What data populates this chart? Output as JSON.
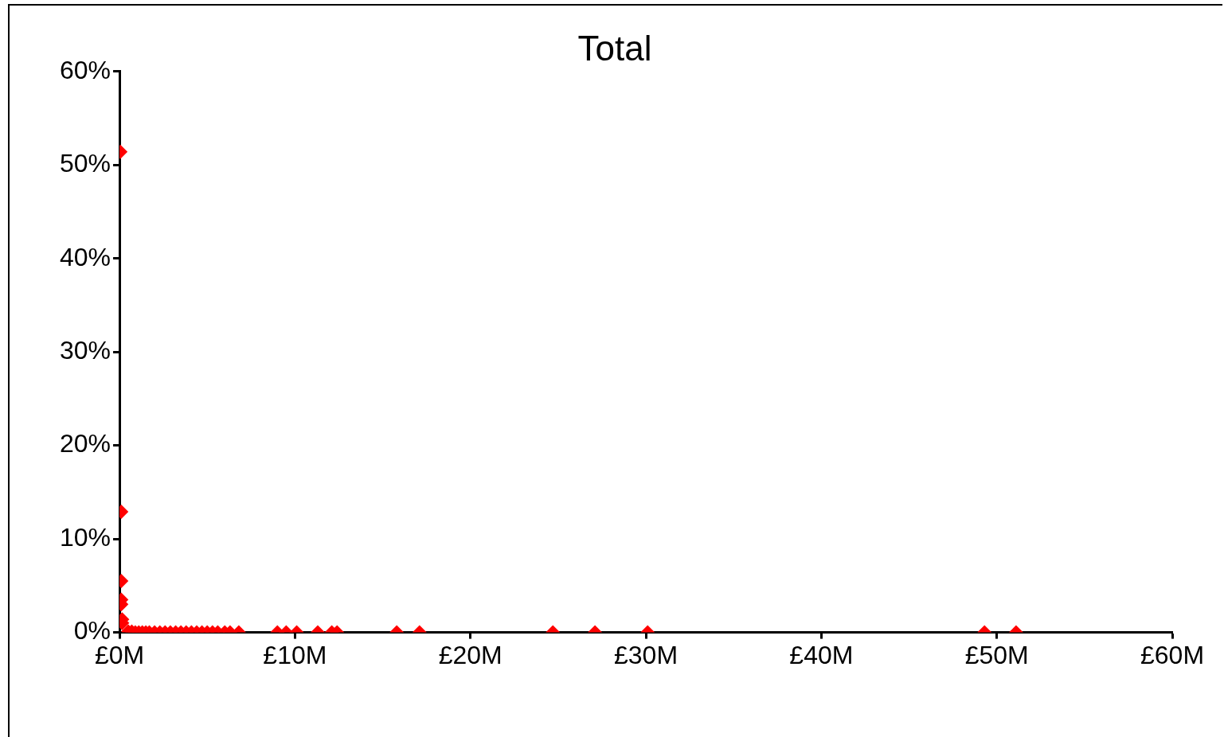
{
  "chart_data": {
    "type": "scatter",
    "title": "Total",
    "marker": "diamond",
    "grid": false,
    "legend": false,
    "series": [
      {
        "color": "#ff0000",
        "x": [
          0.05,
          0.1,
          0.1,
          0.1,
          0.1,
          0.15,
          0.15,
          0.5,
          0.7,
          0.9,
          1.1,
          1.3,
          1.5,
          1.7,
          2.0,
          2.3,
          2.6,
          2.9,
          3.2,
          3.5,
          3.8,
          4.1,
          4.4,
          4.7,
          5.0,
          5.3,
          5.6,
          6.0,
          6.3,
          6.8,
          9.0,
          9.5,
          10.1,
          11.3,
          12.1,
          12.4,
          15.8,
          17.1,
          24.7,
          27.1,
          30.1,
          49.3,
          51.1
        ],
        "values": [
          51.4,
          12.9,
          5.5,
          3.5,
          3.0,
          1.4,
          1.0,
          0.1,
          0.1,
          0,
          0,
          0,
          0,
          0,
          0,
          0,
          0,
          0,
          0,
          0,
          0,
          0,
          0,
          0,
          0,
          0,
          0,
          0,
          0,
          0,
          0,
          0,
          0,
          0,
          0,
          0,
          0,
          0,
          0,
          0,
          0,
          0,
          0
        ]
      }
    ],
    "xlim": [
      0,
      60
    ],
    "xticks": [
      {
        "value": 0,
        "label": "£0M"
      },
      {
        "value": 10,
        "label": "£10M"
      },
      {
        "value": 20,
        "label": "£20M"
      },
      {
        "value": 30,
        "label": "£30M"
      },
      {
        "value": 40,
        "label": "£40M"
      },
      {
        "value": 50,
        "label": "£50M"
      },
      {
        "value": 60,
        "label": "£60M"
      }
    ],
    "ylim": [
      0,
      60
    ],
    "yticks": [
      {
        "value": 0,
        "label": "0%"
      },
      {
        "value": 10,
        "label": "10%"
      },
      {
        "value": 20,
        "label": "20%"
      },
      {
        "value": 30,
        "label": "30%"
      },
      {
        "value": 40,
        "label": "40%"
      },
      {
        "value": 50,
        "label": "50%"
      },
      {
        "value": 60,
        "label": "60%"
      }
    ]
  }
}
